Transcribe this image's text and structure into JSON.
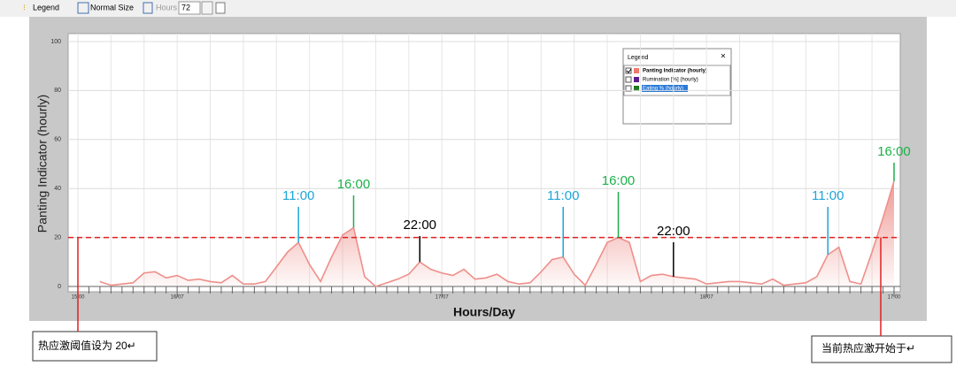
{
  "toolbar": {
    "legend": "Legend",
    "normal_size": "Normal Size",
    "hours_label": "Hours",
    "hours_value": "72"
  },
  "chart_data": {
    "type": "area",
    "y_label": "Panting Indicator (hourly)",
    "x_label": "Hours/Day",
    "categories": [
      "15:00",
      null,
      null,
      null,
      null,
      null,
      null,
      null,
      null,
      "16/07",
      null,
      null,
      null,
      null,
      null,
      null,
      null,
      null,
      null,
      null,
      null,
      null,
      null,
      null,
      null,
      null,
      null,
      null,
      null,
      null,
      null,
      null,
      null,
      "17/07",
      null,
      null,
      null,
      null,
      null,
      null,
      null,
      null,
      null,
      null,
      null,
      null,
      null,
      null,
      null,
      null,
      null,
      null,
      null,
      null,
      null,
      null,
      null,
      "18/07",
      null,
      null,
      null,
      null,
      null,
      null,
      null,
      null,
      null,
      null,
      null,
      null,
      null,
      null,
      null,
      null,
      "17:00"
    ],
    "series": [
      {
        "name": "Panting Indicator (hourly)",
        "color": "#ee8f8a",
        "values": [
          null,
          null,
          2,
          0.5,
          1,
          1.5,
          5.5,
          6,
          3.5,
          4.5,
          2.5,
          3,
          2,
          1.5,
          4.5,
          1,
          1,
          2,
          8,
          14,
          18,
          9,
          2,
          12,
          21,
          24,
          4,
          0,
          1.5,
          3,
          5,
          10,
          7,
          5.5,
          4.5,
          7,
          3,
          3.5,
          5,
          2,
          1,
          1.5,
          6,
          11,
          12,
          5,
          0.5,
          9,
          18,
          20,
          18,
          2,
          4.5,
          5,
          4,
          3.5,
          3,
          1,
          1.5,
          2,
          2,
          1.5,
          1,
          3,
          0.5,
          1,
          1.5,
          4,
          13,
          16,
          2,
          1,
          14,
          28,
          43
        ]
      }
    ],
    "ylim": [
      0,
      100
    ],
    "yticks": [
      0,
      20,
      40,
      60,
      80,
      100
    ],
    "grid": true,
    "threshold": {
      "value": 20,
      "color": "#e02020"
    },
    "annotations": [
      {
        "text": "11:00",
        "color": "#1ea6d8"
      },
      {
        "text": "16:00",
        "color": "#1cb04a"
      },
      {
        "text": "22:00",
        "color": "#000000"
      },
      {
        "text": "11:00",
        "color": "#1ea6d8"
      },
      {
        "text": "16:00",
        "color": "#1cb04a"
      },
      {
        "text": "22:00",
        "color": "#000000"
      },
      {
        "text": "11:00",
        "color": "#1ea6d8"
      },
      {
        "text": "16:00",
        "color": "#1cb04a"
      }
    ]
  },
  "legend_panel": {
    "title": "Legend",
    "items": [
      {
        "label": "Panting Indicator (hourly)",
        "color": "#f07a6a",
        "checked": true
      },
      {
        "label": "Rumination [%] (hourly)",
        "color": "#5a1f8c",
        "checked": false
      },
      {
        "label": "Eating % (hourly)",
        "color": "#1e7a1e",
        "checked": false
      }
    ]
  },
  "callouts": {
    "left": "热应激阈值设为 20↵",
    "right": "当前热应激开始于↵"
  }
}
